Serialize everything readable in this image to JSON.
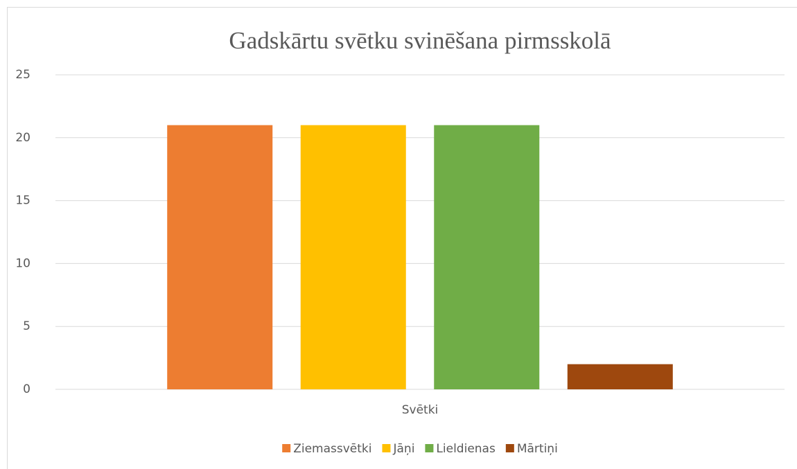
{
  "chart_data": {
    "type": "bar",
    "title": "Gadskārtu svētku svinēšana pirmsskolā",
    "categories": [
      "Svētki"
    ],
    "series": [
      {
        "name": "Ziemassvētki",
        "color": "#ed7d31",
        "values": [
          21
        ]
      },
      {
        "name": "Jāņi",
        "color": "#ffc000",
        "values": [
          21
        ]
      },
      {
        "name": "Lieldienas",
        "color": "#70ad47",
        "values": [
          21
        ]
      },
      {
        "name": "Mārtiņi",
        "color": "#9e480e",
        "values": [
          2
        ]
      }
    ],
    "ylim": [
      0,
      25
    ],
    "yticks": [
      0,
      5,
      10,
      15,
      20,
      25
    ],
    "grid": true,
    "legend": "bottom"
  }
}
